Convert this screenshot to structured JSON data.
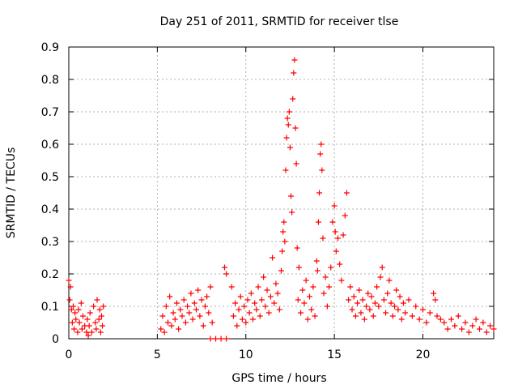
{
  "chart_data": {
    "type": "scatter",
    "title": "Day 251 of 2011, SRMTID for receiver tlse",
    "xlabel": "GPS time / hours",
    "ylabel": "SRMTID / TECUs",
    "xlim": [
      0,
      24
    ],
    "ylim": [
      0,
      0.9
    ],
    "x_ticks": [
      0,
      5,
      10,
      15,
      20
    ],
    "x_tick_labels": [
      "0",
      "5",
      "10",
      "15",
      "20"
    ],
    "y_ticks": [
      0,
      0.1,
      0.2,
      0.3,
      0.4,
      0.5,
      0.6,
      0.7,
      0.8,
      0.9
    ],
    "y_tick_labels": [
      "0",
      "0.1",
      "0.2",
      "0.3",
      "0.4",
      "0.5",
      "0.6",
      "0.7",
      "0.8",
      "0.9"
    ],
    "grid": true,
    "marker": "+",
    "series_color": "#ff0000",
    "series": [
      {
        "name": "SRMTID",
        "points": [
          [
            0.0,
            0.18
          ],
          [
            0.05,
            0.12
          ],
          [
            0.1,
            0.16
          ],
          [
            0.15,
            0.09
          ],
          [
            0.2,
            0.05
          ],
          [
            0.25,
            0.1
          ],
          [
            0.3,
            0.03
          ],
          [
            0.35,
            0.08
          ],
          [
            0.4,
            0.06
          ],
          [
            0.5,
            0.02
          ],
          [
            0.55,
            0.09
          ],
          [
            0.6,
            0.05
          ],
          [
            0.7,
            0.11
          ],
          [
            0.75,
            0.03
          ],
          [
            0.8,
            0.07
          ],
          [
            0.9,
            0.04
          ],
          [
            1.0,
            0.02
          ],
          [
            1.05,
            0.06
          ],
          [
            1.1,
            0.01
          ],
          [
            1.15,
            0.04
          ],
          [
            1.2,
            0.08
          ],
          [
            1.3,
            0.02
          ],
          [
            1.4,
            0.1
          ],
          [
            1.5,
            0.05
          ],
          [
            1.55,
            0.03
          ],
          [
            1.6,
            0.12
          ],
          [
            1.7,
            0.06
          ],
          [
            1.75,
            0.09
          ],
          [
            1.8,
            0.02
          ],
          [
            1.85,
            0.07
          ],
          [
            1.9,
            0.04
          ],
          [
            1.95,
            0.1
          ],
          [
            5.2,
            0.03
          ],
          [
            5.3,
            0.07
          ],
          [
            5.4,
            0.02
          ],
          [
            5.5,
            0.1
          ],
          [
            5.6,
            0.05
          ],
          [
            5.7,
            0.13
          ],
          [
            5.8,
            0.04
          ],
          [
            5.9,
            0.08
          ],
          [
            6.0,
            0.06
          ],
          [
            6.1,
            0.11
          ],
          [
            6.2,
            0.03
          ],
          [
            6.3,
            0.09
          ],
          [
            6.4,
            0.07
          ],
          [
            6.5,
            0.12
          ],
          [
            6.6,
            0.05
          ],
          [
            6.7,
            0.1
          ],
          [
            6.8,
            0.08
          ],
          [
            6.9,
            0.14
          ],
          [
            7.0,
            0.06
          ],
          [
            7.1,
            0.11
          ],
          [
            7.2,
            0.09
          ],
          [
            7.3,
            0.15
          ],
          [
            7.4,
            0.07
          ],
          [
            7.5,
            0.12
          ],
          [
            7.6,
            0.04
          ],
          [
            7.7,
            0.1
          ],
          [
            7.8,
            0.13
          ],
          [
            7.9,
            0.08
          ],
          [
            8.0,
            0.16
          ],
          [
            8.1,
            0.05
          ],
          [
            8.0,
            0.0
          ],
          [
            8.3,
            0.0
          ],
          [
            8.6,
            0.0
          ],
          [
            8.9,
            0.0
          ],
          [
            8.8,
            0.22
          ],
          [
            8.9,
            0.2
          ],
          [
            9.2,
            0.16
          ],
          [
            9.3,
            0.07
          ],
          [
            9.4,
            0.11
          ],
          [
            9.5,
            0.04
          ],
          [
            9.6,
            0.09
          ],
          [
            9.7,
            0.13
          ],
          [
            9.8,
            0.06
          ],
          [
            9.9,
            0.1
          ],
          [
            10.0,
            0.05
          ],
          [
            10.1,
            0.12
          ],
          [
            10.2,
            0.08
          ],
          [
            10.3,
            0.14
          ],
          [
            10.4,
            0.06
          ],
          [
            10.5,
            0.11
          ],
          [
            10.6,
            0.09
          ],
          [
            10.7,
            0.16
          ],
          [
            10.8,
            0.07
          ],
          [
            10.9,
            0.12
          ],
          [
            11.0,
            0.19
          ],
          [
            11.1,
            0.1
          ],
          [
            11.2,
            0.15
          ],
          [
            11.3,
            0.08
          ],
          [
            11.4,
            0.13
          ],
          [
            11.5,
            0.25
          ],
          [
            11.6,
            0.11
          ],
          [
            11.7,
            0.17
          ],
          [
            11.8,
            0.14
          ],
          [
            11.9,
            0.09
          ],
          [
            12.0,
            0.21
          ],
          [
            12.05,
            0.27
          ],
          [
            12.1,
            0.33
          ],
          [
            12.15,
            0.36
          ],
          [
            12.2,
            0.3
          ],
          [
            12.25,
            0.52
          ],
          [
            12.3,
            0.62
          ],
          [
            12.35,
            0.68
          ],
          [
            12.4,
            0.66
          ],
          [
            12.45,
            0.7
          ],
          [
            12.5,
            0.59
          ],
          [
            12.55,
            0.44
          ],
          [
            12.6,
            0.39
          ],
          [
            12.65,
            0.74
          ],
          [
            12.7,
            0.82
          ],
          [
            12.75,
            0.86
          ],
          [
            12.8,
            0.65
          ],
          [
            12.85,
            0.54
          ],
          [
            12.9,
            0.28
          ],
          [
            12.95,
            0.12
          ],
          [
            13.0,
            0.22
          ],
          [
            13.1,
            0.08
          ],
          [
            13.2,
            0.15
          ],
          [
            13.3,
            0.11
          ],
          [
            13.4,
            0.18
          ],
          [
            13.5,
            0.06
          ],
          [
            13.6,
            0.13
          ],
          [
            13.7,
            0.09
          ],
          [
            13.8,
            0.16
          ],
          [
            13.9,
            0.07
          ],
          [
            14.0,
            0.24
          ],
          [
            14.05,
            0.21
          ],
          [
            14.1,
            0.36
          ],
          [
            14.15,
            0.45
          ],
          [
            14.2,
            0.57
          ],
          [
            14.25,
            0.6
          ],
          [
            14.3,
            0.52
          ],
          [
            14.35,
            0.31
          ],
          [
            14.4,
            0.14
          ],
          [
            14.5,
            0.19
          ],
          [
            14.6,
            0.1
          ],
          [
            14.7,
            0.16
          ],
          [
            14.8,
            0.22
          ],
          [
            14.9,
            0.36
          ],
          [
            15.0,
            0.41
          ],
          [
            15.05,
            0.33
          ],
          [
            15.1,
            0.27
          ],
          [
            15.2,
            0.31
          ],
          [
            15.3,
            0.23
          ],
          [
            15.4,
            0.18
          ],
          [
            15.5,
            0.32
          ],
          [
            15.6,
            0.38
          ],
          [
            15.7,
            0.45
          ],
          [
            15.8,
            0.12
          ],
          [
            15.9,
            0.16
          ],
          [
            16.0,
            0.09
          ],
          [
            16.1,
            0.13
          ],
          [
            16.2,
            0.07
          ],
          [
            16.3,
            0.11
          ],
          [
            16.4,
            0.15
          ],
          [
            16.5,
            0.08
          ],
          [
            16.6,
            0.12
          ],
          [
            16.7,
            0.06
          ],
          [
            16.8,
            0.1
          ],
          [
            16.9,
            0.14
          ],
          [
            17.0,
            0.09
          ],
          [
            17.1,
            0.13
          ],
          [
            17.2,
            0.07
          ],
          [
            17.3,
            0.11
          ],
          [
            17.4,
            0.16
          ],
          [
            17.5,
            0.1
          ],
          [
            17.6,
            0.19
          ],
          [
            17.7,
            0.22
          ],
          [
            17.8,
            0.12
          ],
          [
            17.9,
            0.08
          ],
          [
            18.0,
            0.14
          ],
          [
            18.1,
            0.18
          ],
          [
            18.2,
            0.11
          ],
          [
            18.3,
            0.07
          ],
          [
            18.4,
            0.1
          ],
          [
            18.5,
            0.15
          ],
          [
            18.6,
            0.09
          ],
          [
            18.7,
            0.13
          ],
          [
            18.8,
            0.06
          ],
          [
            18.9,
            0.11
          ],
          [
            19.0,
            0.08
          ],
          [
            19.2,
            0.12
          ],
          [
            19.4,
            0.07
          ],
          [
            19.6,
            0.1
          ],
          [
            19.8,
            0.06
          ],
          [
            20.0,
            0.09
          ],
          [
            20.2,
            0.05
          ],
          [
            20.4,
            0.08
          ],
          [
            20.6,
            0.14
          ],
          [
            20.7,
            0.12
          ],
          [
            20.8,
            0.07
          ],
          [
            21.0,
            0.06
          ],
          [
            21.2,
            0.05
          ],
          [
            21.4,
            0.03
          ],
          [
            21.6,
            0.06
          ],
          [
            21.8,
            0.04
          ],
          [
            22.0,
            0.07
          ],
          [
            22.2,
            0.03
          ],
          [
            22.4,
            0.05
          ],
          [
            22.6,
            0.02
          ],
          [
            22.8,
            0.04
          ],
          [
            23.0,
            0.06
          ],
          [
            23.2,
            0.03
          ],
          [
            23.4,
            0.05
          ],
          [
            23.6,
            0.02
          ],
          [
            23.8,
            0.04
          ],
          [
            24.0,
            0.03
          ]
        ]
      }
    ]
  }
}
